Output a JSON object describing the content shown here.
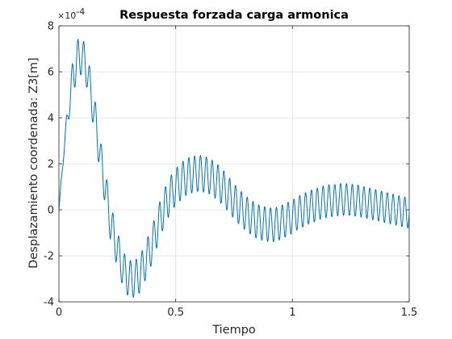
{
  "chart_data": {
    "type": "line",
    "title": "Respuesta forzada carga armonica",
    "xlabel": "Tiempo",
    "ylabel": "Desplazamiento coordenada: Z3[m]",
    "y_exponent_base": "×10",
    "y_exponent_power": "-4",
    "xlim": [
      0,
      1.5
    ],
    "ylim": [
      -4,
      8
    ],
    "x_ticks": [
      0,
      0.5,
      1,
      1.5
    ],
    "x_tick_labels": [
      "0",
      "0.5",
      "1",
      "1.5"
    ],
    "y_ticks": [
      -4,
      -2,
      0,
      2,
      4,
      6,
      8
    ],
    "y_tick_labels": [
      "-4",
      "-2",
      "0",
      "2",
      "4",
      "6",
      "8"
    ],
    "grid": true,
    "legend": false,
    "line_color": "#0072BD",
    "series": [
      {
        "samples": [
          [
            0.0,
            0.0
          ],
          [
            0.02,
            2.5
          ],
          [
            0.04,
            4.3
          ],
          [
            0.06,
            5.8
          ],
          [
            0.08,
            6.6
          ],
          [
            0.1,
            6.7
          ],
          [
            0.12,
            6.1
          ],
          [
            0.14,
            4.9
          ],
          [
            0.16,
            3.6
          ],
          [
            0.18,
            2.1
          ],
          [
            0.2,
            0.9
          ],
          [
            0.22,
            -0.5
          ],
          [
            0.24,
            -1.3
          ],
          [
            0.26,
            -2.1
          ],
          [
            0.28,
            -2.7
          ],
          [
            0.3,
            -3.0
          ],
          [
            0.32,
            -3.0
          ],
          [
            0.34,
            -2.9
          ],
          [
            0.36,
            -2.5
          ],
          [
            0.38,
            -2.0
          ],
          [
            0.4,
            -1.5
          ],
          [
            0.42,
            -0.8
          ],
          [
            0.44,
            -0.2
          ],
          [
            0.46,
            0.3
          ],
          [
            0.48,
            0.7
          ],
          [
            0.5,
            1.0
          ],
          [
            0.52,
            1.2
          ],
          [
            0.54,
            1.4
          ],
          [
            0.56,
            1.5
          ],
          [
            0.58,
            1.55
          ],
          [
            0.6,
            1.6
          ],
          [
            0.62,
            1.55
          ],
          [
            0.64,
            1.5
          ],
          [
            0.66,
            1.35
          ],
          [
            0.68,
            1.2
          ],
          [
            0.7,
            1.0
          ],
          [
            0.72,
            0.75
          ],
          [
            0.74,
            0.5
          ],
          [
            0.76,
            0.25
          ],
          [
            0.78,
            0.05
          ],
          [
            0.8,
            -0.15
          ],
          [
            0.82,
            -0.3
          ],
          [
            0.84,
            -0.45
          ],
          [
            0.86,
            -0.55
          ],
          [
            0.88,
            -0.6
          ],
          [
            0.9,
            -0.65
          ],
          [
            0.92,
            -0.65
          ],
          [
            0.94,
            -0.6
          ],
          [
            0.96,
            -0.5
          ],
          [
            0.98,
            -0.4
          ],
          [
            1.0,
            -0.3
          ],
          [
            1.02,
            -0.15
          ],
          [
            1.04,
            -0.05
          ],
          [
            1.06,
            0.05
          ],
          [
            1.08,
            0.15
          ],
          [
            1.1,
            0.2
          ],
          [
            1.12,
            0.3
          ],
          [
            1.14,
            0.35
          ],
          [
            1.16,
            0.4
          ],
          [
            1.18,
            0.4
          ],
          [
            1.2,
            0.45
          ],
          [
            1.22,
            0.45
          ],
          [
            1.24,
            0.45
          ],
          [
            1.26,
            0.42
          ],
          [
            1.28,
            0.4
          ],
          [
            1.3,
            0.35
          ],
          [
            1.32,
            0.3
          ],
          [
            1.34,
            0.25
          ],
          [
            1.36,
            0.2
          ],
          [
            1.38,
            0.15
          ],
          [
            1.4,
            0.1
          ],
          [
            1.42,
            0.05
          ],
          [
            1.44,
            0.0
          ],
          [
            1.46,
            -0.05
          ],
          [
            1.48,
            -0.1
          ],
          [
            1.5,
            -0.15
          ]
        ],
        "oscillation": {
          "frequency_hz": 40,
          "amplitude_ramp": [
            [
              0.0,
              0.0
            ],
            [
              0.06,
              0.8
            ],
            [
              0.5,
              0.8
            ],
            [
              1.5,
              0.65
            ]
          ]
        }
      }
    ]
  }
}
